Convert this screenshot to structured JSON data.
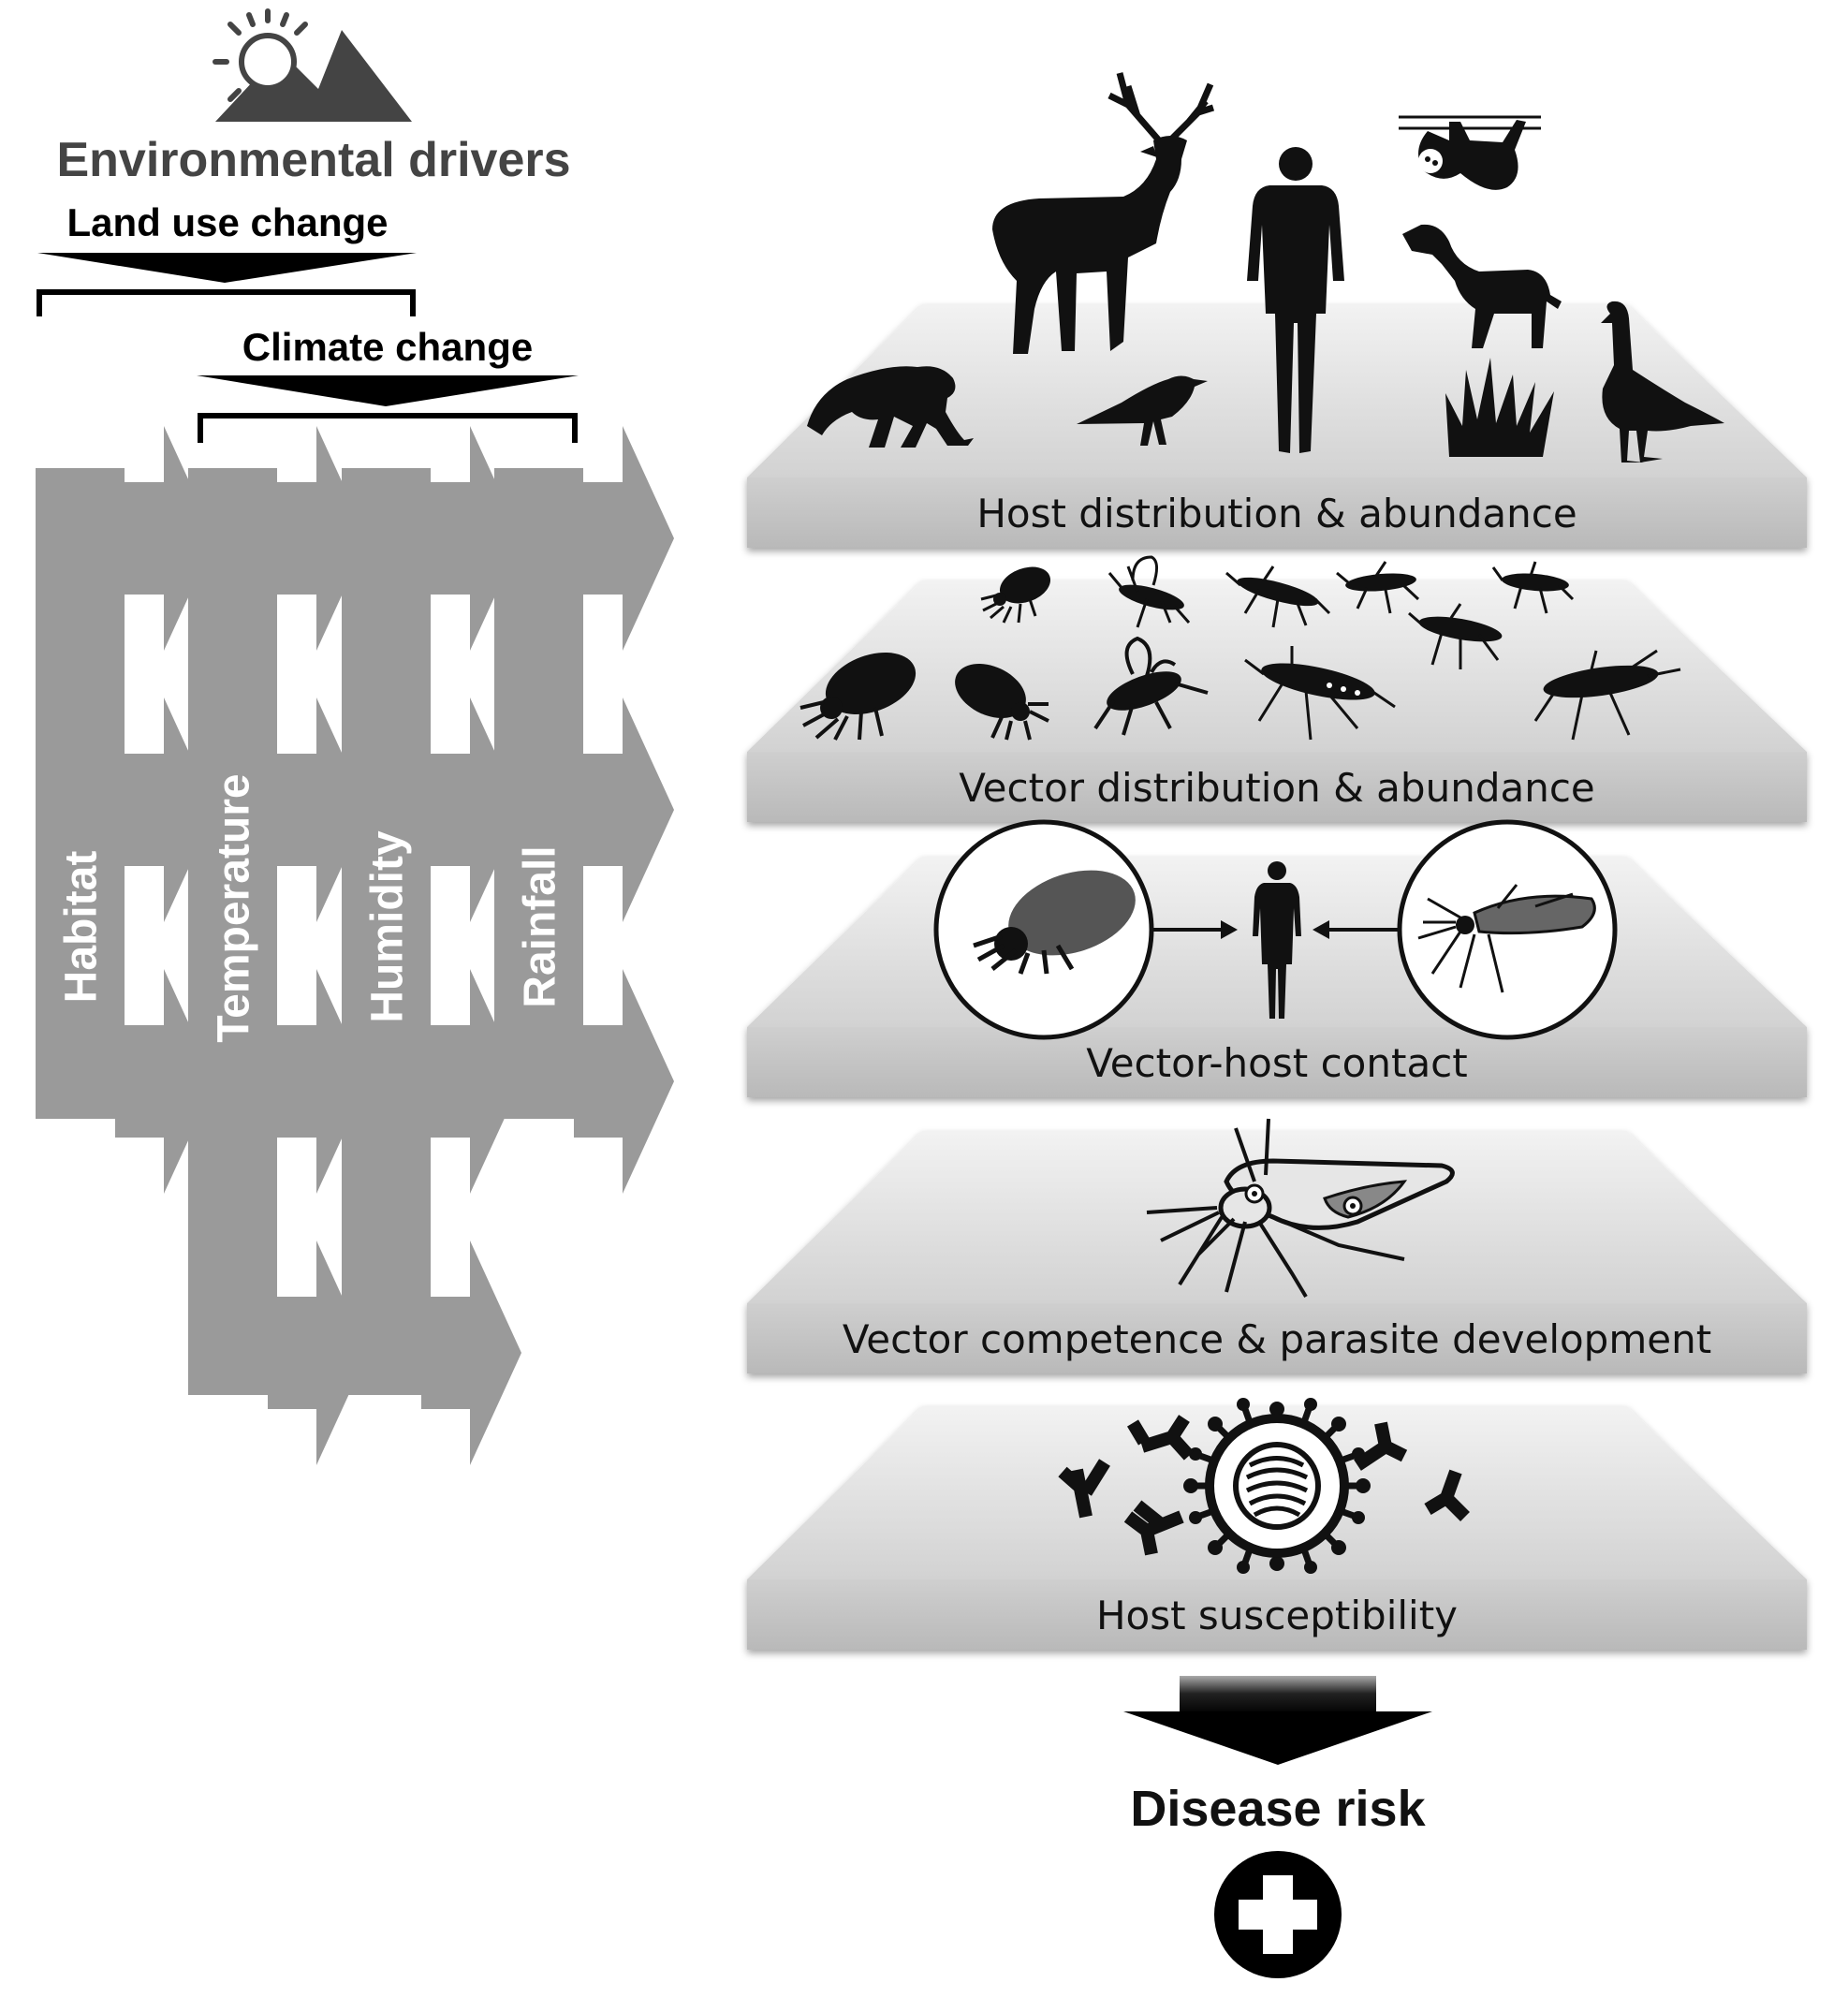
{
  "header": {
    "title": "Environmental drivers",
    "icon": "sun-mountain-icon"
  },
  "drivers": [
    {
      "label": "Land use change"
    },
    {
      "label": "Climate change"
    }
  ],
  "factors": [
    {
      "label": "Habitat"
    },
    {
      "label": "Temperature"
    },
    {
      "label": "Humidity"
    },
    {
      "label": "Rainfall"
    }
  ],
  "layers": [
    {
      "label": "Host distribution & abundance",
      "icons": [
        "deer-icon",
        "human-icon",
        "sloth-icon",
        "dog-icon",
        "monkey-icon",
        "crow-icon",
        "grass-icon",
        "goose-icon"
      ]
    },
    {
      "label": "Vector distribution & abundance",
      "icons": [
        "tick-icon",
        "mosquito-icon"
      ]
    },
    {
      "label": "Vector-host contact",
      "icons": [
        "tick-icon",
        "human-icon",
        "mosquito-icon"
      ]
    },
    {
      "label": "Vector competence & parasite development",
      "icons": [
        "infected-mosquito-icon"
      ]
    },
    {
      "label": "Host susceptibility",
      "icons": [
        "virus-icon",
        "antibody-icon"
      ]
    }
  ],
  "outcome": {
    "label": "Disease risk",
    "icon": "medical-cross-icon"
  },
  "colors": {
    "column_fill": "#9a9a9a",
    "platform_top": "#dcdcdc",
    "platform_front": "#c4c4c4",
    "silhouette": "#111111",
    "title": "#444444"
  }
}
